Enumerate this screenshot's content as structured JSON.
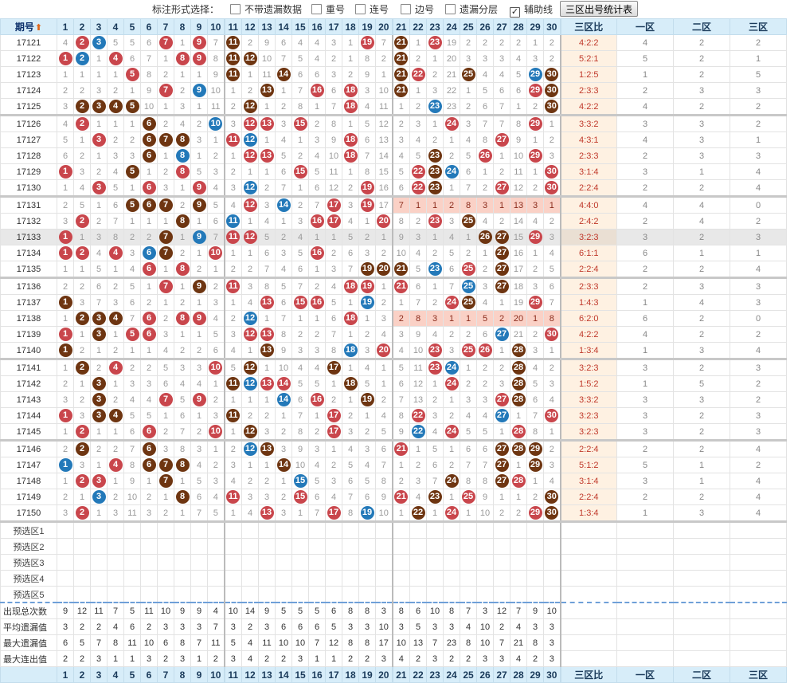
{
  "toolbar": {
    "label": "标注形式选择：",
    "options": [
      {
        "label": "不带遗漏数据",
        "checked": false
      },
      {
        "label": "重号",
        "checked": false
      },
      {
        "label": "连号",
        "checked": false
      },
      {
        "label": "边号",
        "checked": false
      },
      {
        "label": "遗漏分层",
        "checked": false
      },
      {
        "label": "辅助线",
        "checked": true
      }
    ],
    "stats_button": "三区出号统计表"
  },
  "header": {
    "period_label": "期号",
    "sort_icon": "sort-arrow-icon",
    "zone_ratio_label": "三区比",
    "zone_labels": [
      "一区",
      "二区",
      "三区"
    ],
    "numbers": [
      "1",
      "2",
      "3",
      "4",
      "5",
      "6",
      "7",
      "8",
      "9",
      "10",
      "11",
      "12",
      "13",
      "14",
      "15",
      "16",
      "17",
      "18",
      "19",
      "20",
      "21",
      "22",
      "23",
      "24",
      "25",
      "26",
      "27",
      "28",
      "29",
      "30"
    ]
  },
  "ball_colors": {
    "r": "#c9464c",
    "b": "#2379b9",
    "k": "#6e3511"
  },
  "rows": [
    {
      "period": "17121",
      "cells": [
        "4",
        "2r",
        "3b",
        "5",
        "5",
        "6",
        "7r",
        "1",
        "9r",
        "7",
        "11k",
        "2",
        "9",
        "6",
        "4",
        "4",
        "3",
        "1",
        "19r",
        "7",
        "21k",
        "1",
        "23r",
        "19",
        "2",
        "2",
        "2",
        "2",
        "1",
        "2"
      ],
      "ratio": "4:2:2",
      "zones": [
        "4",
        "2",
        "2"
      ]
    },
    {
      "period": "17122",
      "cells": [
        "1r",
        "2b",
        "1",
        "4r",
        "6",
        "7",
        "1",
        "8r",
        "9r",
        "8",
        "11k",
        "12k",
        "10",
        "7",
        "5",
        "4",
        "2",
        "1",
        "8",
        "2",
        "21k",
        "2",
        "1",
        "20",
        "3",
        "3",
        "3",
        "4",
        "3",
        "2"
      ],
      "ratio": "5:2:1",
      "zones": [
        "5",
        "2",
        "1"
      ]
    },
    {
      "period": "17123",
      "cells": [
        "1",
        "1",
        "1",
        "1",
        "5r",
        "8",
        "2",
        "1",
        "1",
        "9",
        "11k",
        "1",
        "11",
        "14k",
        "6",
        "6",
        "3",
        "2",
        "9",
        "1",
        "21k",
        "22r",
        "2",
        "21",
        "25k",
        "4",
        "4",
        "5",
        "29b",
        "30k"
      ],
      "ratio": "1:2:5",
      "zones": [
        "1",
        "2",
        "5"
      ]
    },
    {
      "period": "17124",
      "cells": [
        "2",
        "2",
        "3",
        "2",
        "1",
        "9",
        "7r",
        "2",
        "9b",
        "10",
        "1",
        "2",
        "13k",
        "1",
        "7",
        "16r",
        "6",
        "18r",
        "3",
        "10",
        "21k",
        "1",
        "3",
        "22",
        "1",
        "5",
        "6",
        "6",
        "29r",
        "30k"
      ],
      "ratio": "2:3:3",
      "zones": [
        "2",
        "3",
        "3"
      ]
    },
    {
      "period": "17125",
      "cells": [
        "3",
        "2k",
        "3k",
        "4k",
        "5k",
        "10",
        "1",
        "3",
        "1",
        "11",
        "2",
        "12k",
        "1",
        "2",
        "8",
        "1",
        "7",
        "18r",
        "4",
        "11",
        "1",
        "2",
        "23b",
        "23",
        "2",
        "6",
        "7",
        "1",
        "2",
        "30k"
      ],
      "ratio": "4:2:2",
      "zones": [
        "4",
        "2",
        "2"
      ],
      "gsep": true
    },
    {
      "period": "17126",
      "cells": [
        "4",
        "2r",
        "1",
        "1",
        "1",
        "6k",
        "2",
        "4",
        "2",
        "10b",
        "3",
        "12r",
        "13r",
        "3",
        "15r",
        "2",
        "8",
        "1",
        "5",
        "12",
        "2",
        "3",
        "1",
        "24r",
        "3",
        "7",
        "7",
        "8",
        "29r",
        "1"
      ],
      "ratio": "3:3:2",
      "zones": [
        "3",
        "3",
        "2"
      ]
    },
    {
      "period": "17127",
      "cells": [
        "5",
        "1",
        "3r",
        "2",
        "2",
        "6k",
        "7k",
        "8k",
        "3",
        "1",
        "11r",
        "12b",
        "1",
        "4",
        "1",
        "3",
        "9",
        "18r",
        "6",
        "13",
        "3",
        "4",
        "2",
        "1",
        "4",
        "8",
        "27r",
        "9",
        "1",
        "2"
      ],
      "ratio": "4:3:1",
      "zones": [
        "4",
        "3",
        "1"
      ]
    },
    {
      "period": "17128",
      "cells": [
        "6",
        "2",
        "1",
        "3",
        "3",
        "6k",
        "1",
        "8b",
        "1",
        "2",
        "1",
        "12r",
        "13r",
        "5",
        "2",
        "4",
        "10",
        "18r",
        "7",
        "14",
        "4",
        "5",
        "23k",
        "2",
        "5",
        "26r",
        "1",
        "10",
        "29r",
        "3"
      ],
      "ratio": "2:3:3",
      "zones": [
        "2",
        "3",
        "3"
      ]
    },
    {
      "period": "17129",
      "cells": [
        "1r",
        "3",
        "2",
        "4",
        "5k",
        "1",
        "2",
        "8r",
        "5",
        "3",
        "2",
        "1",
        "1",
        "6",
        "15r",
        "5",
        "11",
        "1",
        "8",
        "15",
        "5",
        "22r",
        "23k",
        "24b",
        "6",
        "1",
        "2",
        "11",
        "1",
        "30r"
      ],
      "ratio": "3:1:4",
      "zones": [
        "3",
        "1",
        "4"
      ]
    },
    {
      "period": "17130",
      "cells": [
        "1",
        "4",
        "3r",
        "5",
        "1",
        "6r",
        "3",
        "1",
        "9r",
        "4",
        "3",
        "12b",
        "2",
        "7",
        "1",
        "6",
        "12",
        "2",
        "19r",
        "16",
        "6",
        "22r",
        "23k",
        "1",
        "7",
        "2",
        "27r",
        "12",
        "2",
        "30r"
      ],
      "ratio": "2:2:4",
      "zones": [
        "2",
        "2",
        "4"
      ],
      "gsep": true
    },
    {
      "period": "17131",
      "cells": [
        "2",
        "5",
        "1",
        "6",
        "5k",
        "6k",
        "7k",
        "2",
        "9k",
        "5",
        "4",
        "12r",
        "3",
        "14b",
        "2",
        "7",
        "17r",
        "3",
        "19r",
        "17",
        "7p",
        "1p",
        "1p",
        "2p",
        "8p",
        "3p",
        "1p",
        "13p",
        "3p",
        "1p"
      ],
      "ratio": "4:4:0",
      "zones": [
        "4",
        "4",
        "0"
      ]
    },
    {
      "period": "17132",
      "cells": [
        "3",
        "2r",
        "2",
        "7",
        "1",
        "1",
        "1",
        "8k",
        "1",
        "6",
        "11b",
        "1",
        "4",
        "1",
        "3",
        "16r",
        "17r",
        "4",
        "1",
        "20r",
        "8",
        "2",
        "23r",
        "3",
        "25k",
        "4",
        "2",
        "14",
        "4",
        "2"
      ],
      "ratio": "2:4:2",
      "zones": [
        "2",
        "4",
        "2"
      ]
    },
    {
      "period": "17133",
      "cells": [
        "1r",
        "1",
        "3",
        "8",
        "2",
        "2",
        "7k",
        "1",
        "9b",
        "7",
        "11r",
        "12r",
        "5",
        "2",
        "4",
        "1",
        "1",
        "5",
        "2",
        "1",
        "9",
        "3",
        "1",
        "4",
        "1",
        "26k",
        "27k",
        "15",
        "29r",
        "3"
      ],
      "ratio": "3:2:3",
      "zones": [
        "3",
        "2",
        "3"
      ],
      "hl": true
    },
    {
      "period": "17134",
      "cells": [
        "1r",
        "2r",
        "4",
        "4r",
        "3",
        "6b",
        "7k",
        "2",
        "1",
        "10r",
        "1",
        "1",
        "6",
        "3",
        "5",
        "16r",
        "2",
        "6",
        "3",
        "2",
        "10",
        "4",
        "2",
        "5",
        "2",
        "1",
        "27k",
        "16",
        "1",
        "4"
      ],
      "ratio": "6:1:1",
      "zones": [
        "6",
        "1",
        "1"
      ]
    },
    {
      "period": "17135",
      "cells": [
        "1",
        "1",
        "5",
        "1",
        "4",
        "6r",
        "1",
        "8r",
        "2",
        "1",
        "2",
        "2",
        "7",
        "4",
        "6",
        "1",
        "3",
        "7",
        "19k",
        "20k",
        "21k",
        "5",
        "23b",
        "6",
        "25r",
        "2",
        "27k",
        "17",
        "2",
        "5"
      ],
      "ratio": "2:2:4",
      "zones": [
        "2",
        "2",
        "4"
      ],
      "gsep": true
    },
    {
      "period": "17136",
      "cells": [
        "2",
        "2",
        "6",
        "2",
        "5",
        "1",
        "7r",
        "1",
        "9k",
        "2",
        "11r",
        "3",
        "8",
        "5",
        "7",
        "2",
        "4",
        "18r",
        "19r",
        "1",
        "21r",
        "6",
        "1",
        "7",
        "25b",
        "3",
        "27k",
        "18",
        "3",
        "6"
      ],
      "ratio": "2:3:3",
      "zones": [
        "2",
        "3",
        "3"
      ]
    },
    {
      "period": "17137",
      "cells": [
        "1k",
        "3",
        "7",
        "3",
        "6",
        "2",
        "1",
        "2",
        "1",
        "3",
        "1",
        "4",
        "13r",
        "6",
        "15r",
        "16r",
        "5",
        "1",
        "19b",
        "2",
        "1",
        "7",
        "2",
        "24r",
        "25k",
        "4",
        "1",
        "19",
        "29r",
        "7"
      ],
      "ratio": "1:4:3",
      "zones": [
        "1",
        "4",
        "3"
      ]
    },
    {
      "period": "17138",
      "cells": [
        "1",
        "2k",
        "3k",
        "4k",
        "7",
        "6r",
        "2",
        "8r",
        "9r",
        "4",
        "2",
        "12b",
        "1",
        "7",
        "1",
        "1",
        "6",
        "18r",
        "1",
        "3",
        "2p",
        "8p",
        "3p",
        "1p",
        "1p",
        "5p",
        "2p",
        "20p",
        "1p",
        "8p"
      ],
      "ratio": "6:2:0",
      "zones": [
        "6",
        "2",
        "0"
      ]
    },
    {
      "period": "17139",
      "cells": [
        "1r",
        "1",
        "3k",
        "1",
        "5r",
        "6r",
        "3",
        "1",
        "1",
        "5",
        "3",
        "12r",
        "13r",
        "8",
        "2",
        "2",
        "7",
        "1",
        "2",
        "4",
        "3",
        "9",
        "4",
        "2",
        "2",
        "6",
        "27b",
        "21",
        "2",
        "30r"
      ],
      "ratio": "4:2:2",
      "zones": [
        "4",
        "2",
        "2"
      ]
    },
    {
      "period": "17140",
      "cells": [
        "1k",
        "2",
        "1",
        "2",
        "1",
        "1",
        "4",
        "2",
        "2",
        "6",
        "4",
        "1",
        "13k",
        "9",
        "3",
        "3",
        "8",
        "18b",
        "3",
        "20r",
        "4",
        "10",
        "23r",
        "3",
        "25r",
        "26r",
        "1",
        "28k",
        "3",
        "1"
      ],
      "ratio": "1:3:4",
      "zones": [
        "1",
        "3",
        "4"
      ],
      "gsep": true
    },
    {
      "period": "17141",
      "cells": [
        "1",
        "2k",
        "2",
        "4r",
        "2",
        "2",
        "5",
        "3",
        "3",
        "10r",
        "5",
        "12k",
        "1",
        "10",
        "4",
        "4",
        "17k",
        "1",
        "4",
        "1",
        "5",
        "11",
        "23r",
        "24b",
        "1",
        "2",
        "2",
        "28k",
        "4",
        "2"
      ],
      "ratio": "3:2:3",
      "zones": [
        "3",
        "2",
        "3"
      ]
    },
    {
      "period": "17142",
      "cells": [
        "2",
        "1",
        "3k",
        "1",
        "3",
        "3",
        "6",
        "4",
        "4",
        "1",
        "11k",
        "12b",
        "13r",
        "14r",
        "5",
        "5",
        "1",
        "18k",
        "5",
        "1",
        "6",
        "12",
        "1",
        "24r",
        "2",
        "2",
        "3",
        "28k",
        "5",
        "3"
      ],
      "ratio": "1:5:2",
      "zones": [
        "1",
        "5",
        "2"
      ]
    },
    {
      "period": "17143",
      "cells": [
        "3",
        "2",
        "3k",
        "2",
        "4",
        "4",
        "7r",
        "5",
        "9r",
        "2",
        "1",
        "1",
        "1",
        "14b",
        "6",
        "16r",
        "2",
        "1",
        "19k",
        "2",
        "7",
        "13",
        "2",
        "1",
        "3",
        "3",
        "27r",
        "28k",
        "6",
        "4"
      ],
      "ratio": "3:3:2",
      "zones": [
        "3",
        "3",
        "2"
      ]
    },
    {
      "period": "17144",
      "cells": [
        "1r",
        "3",
        "3k",
        "4k",
        "5",
        "5",
        "1",
        "6",
        "1",
        "3",
        "11k",
        "2",
        "2",
        "1",
        "7",
        "1",
        "17r",
        "2",
        "1",
        "4",
        "8",
        "22r",
        "3",
        "2",
        "4",
        "4",
        "27b",
        "1",
        "7",
        "30r"
      ],
      "ratio": "3:2:3",
      "zones": [
        "3",
        "2",
        "3"
      ]
    },
    {
      "period": "17145",
      "cells": [
        "1",
        "2r",
        "1",
        "1",
        "6",
        "6r",
        "2",
        "7",
        "2",
        "10r",
        "1",
        "12k",
        "3",
        "2",
        "8",
        "2",
        "17r",
        "3",
        "2",
        "5",
        "9",
        "22b",
        "4",
        "24r",
        "5",
        "5",
        "1",
        "28r",
        "8",
        "1"
      ],
      "ratio": "3:2:3",
      "zones": [
        "3",
        "2",
        "3"
      ],
      "gsep": true
    },
    {
      "period": "17146",
      "cells": [
        "2",
        "2k",
        "2",
        "2",
        "7",
        "6k",
        "3",
        "8",
        "3",
        "1",
        "2",
        "12b",
        "13k",
        "3",
        "9",
        "3",
        "1",
        "4",
        "3",
        "6",
        "21r",
        "1",
        "5",
        "1",
        "6",
        "6",
        "27k",
        "28k",
        "29k",
        "2"
      ],
      "ratio": "2:2:4",
      "zones": [
        "2",
        "2",
        "4"
      ]
    },
    {
      "period": "17147",
      "cells": [
        "1b",
        "3",
        "1",
        "4r",
        "8",
        "6k",
        "7k",
        "8k",
        "4",
        "2",
        "3",
        "1",
        "1",
        "14k",
        "10",
        "4",
        "2",
        "5",
        "4",
        "7",
        "1",
        "2",
        "6",
        "2",
        "7",
        "7",
        "27k",
        "1",
        "29k",
        "3"
      ],
      "ratio": "5:1:2",
      "zones": [
        "5",
        "1",
        "2"
      ]
    },
    {
      "period": "17148",
      "cells": [
        "1",
        "2r",
        "3r",
        "1",
        "9",
        "1",
        "7k",
        "1",
        "5",
        "3",
        "4",
        "2",
        "2",
        "1",
        "15b",
        "5",
        "3",
        "6",
        "5",
        "8",
        "2",
        "3",
        "7",
        "24k",
        "8",
        "8",
        "27k",
        "28r",
        "1",
        "4"
      ],
      "ratio": "3:1:4",
      "zones": [
        "3",
        "1",
        "4"
      ]
    },
    {
      "period": "17149",
      "cells": [
        "2",
        "1",
        "3b",
        "2",
        "10",
        "2",
        "1",
        "8k",
        "6",
        "4",
        "11r",
        "3",
        "3",
        "2",
        "15r",
        "6",
        "4",
        "7",
        "6",
        "9",
        "21r",
        "4",
        "23k",
        "1",
        "25r",
        "9",
        "1",
        "1",
        "2",
        "30k"
      ],
      "ratio": "2:2:4",
      "zones": [
        "2",
        "2",
        "4"
      ]
    },
    {
      "period": "17150",
      "cells": [
        "3",
        "2r",
        "1",
        "3",
        "11",
        "3",
        "2",
        "1",
        "7",
        "5",
        "1",
        "4",
        "13r",
        "3",
        "1",
        "7",
        "17r",
        "8",
        "19b",
        "10",
        "1",
        "22k",
        "1",
        "24r",
        "1",
        "10",
        "2",
        "2",
        "29r",
        "30k"
      ],
      "ratio": "1:3:4",
      "zones": [
        "1",
        "3",
        "4"
      ],
      "gsep": true
    }
  ],
  "predict_rows": [
    "预选区1",
    "预选区2",
    "预选区3",
    "预选区4",
    "预选区5"
  ],
  "stat_rows": [
    {
      "label": "出现总次数",
      "values": [
        "9",
        "12",
        "11",
        "7",
        "5",
        "11",
        "10",
        "9",
        "9",
        "4",
        "10",
        "14",
        "9",
        "5",
        "5",
        "5",
        "6",
        "8",
        "8",
        "3",
        "8",
        "6",
        "10",
        "8",
        "7",
        "3",
        "12",
        "7",
        "9",
        "10"
      ]
    },
    {
      "label": "平均遗漏值",
      "values": [
        "3",
        "2",
        "2",
        "4",
        "6",
        "2",
        "3",
        "3",
        "3",
        "7",
        "3",
        "2",
        "3",
        "6",
        "6",
        "6",
        "5",
        "3",
        "3",
        "10",
        "3",
        "5",
        "3",
        "3",
        "4",
        "10",
        "2",
        "4",
        "3",
        "3"
      ]
    },
    {
      "label": "最大遗漏值",
      "values": [
        "6",
        "5",
        "7",
        "8",
        "11",
        "10",
        "6",
        "8",
        "7",
        "11",
        "5",
        "4",
        "11",
        "10",
        "10",
        "7",
        "12",
        "8",
        "8",
        "17",
        "10",
        "13",
        "7",
        "23",
        "8",
        "10",
        "7",
        "21",
        "8",
        "3"
      ]
    },
    {
      "label": "最大连出值",
      "values": [
        "2",
        "2",
        "3",
        "1",
        "1",
        "3",
        "2",
        "3",
        "1",
        "2",
        "3",
        "4",
        "2",
        "2",
        "3",
        "1",
        "1",
        "2",
        "2",
        "3",
        "4",
        "2",
        "3",
        "2",
        "2",
        "3",
        "3",
        "4",
        "2",
        "3"
      ]
    }
  ]
}
